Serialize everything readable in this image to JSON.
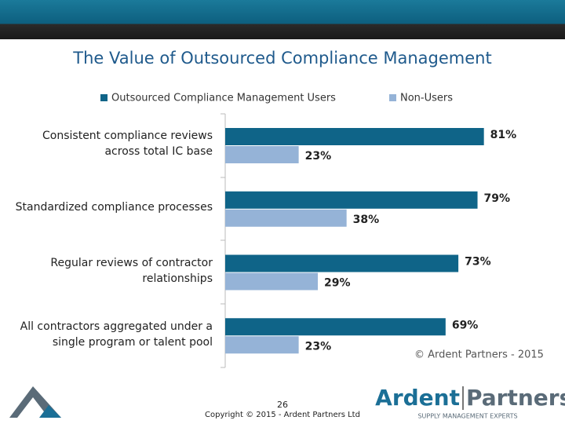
{
  "chart_data": {
    "type": "hbar",
    "title": "The Value of Outsourced Compliance Management",
    "categories": [
      "Consistent compliance reviews\nacross total IC base",
      "Standardized compliance processes",
      "Regular reviews of contractor\nrelationships",
      "All contractors aggregated under a\nsingle program or talent pool"
    ],
    "series": [
      {
        "name": "Outsourced Compliance Management Users",
        "color": "#0f6488",
        "values": [
          81,
          79,
          73,
          69
        ],
        "value_labels": [
          "81%",
          "79%",
          "73%",
          "69%"
        ]
      },
      {
        "name": "Non-Users",
        "color": "#95b3d7",
        "values": [
          23,
          38,
          29,
          23
        ],
        "value_labels": [
          "23%",
          "38%",
          "29%",
          "23%"
        ]
      }
    ],
    "xlim": [
      0,
      100
    ],
    "legend": "top"
  },
  "source_note": "© Ardent Partners - 2015",
  "page_number": "26",
  "copyright": "Copyright © 2015 - Ardent Partners Ltd",
  "logo": {
    "left": "Ardent",
    "right": "Partners",
    "tagline": "SUPPLY MANAGEMENT EXPERTS"
  }
}
